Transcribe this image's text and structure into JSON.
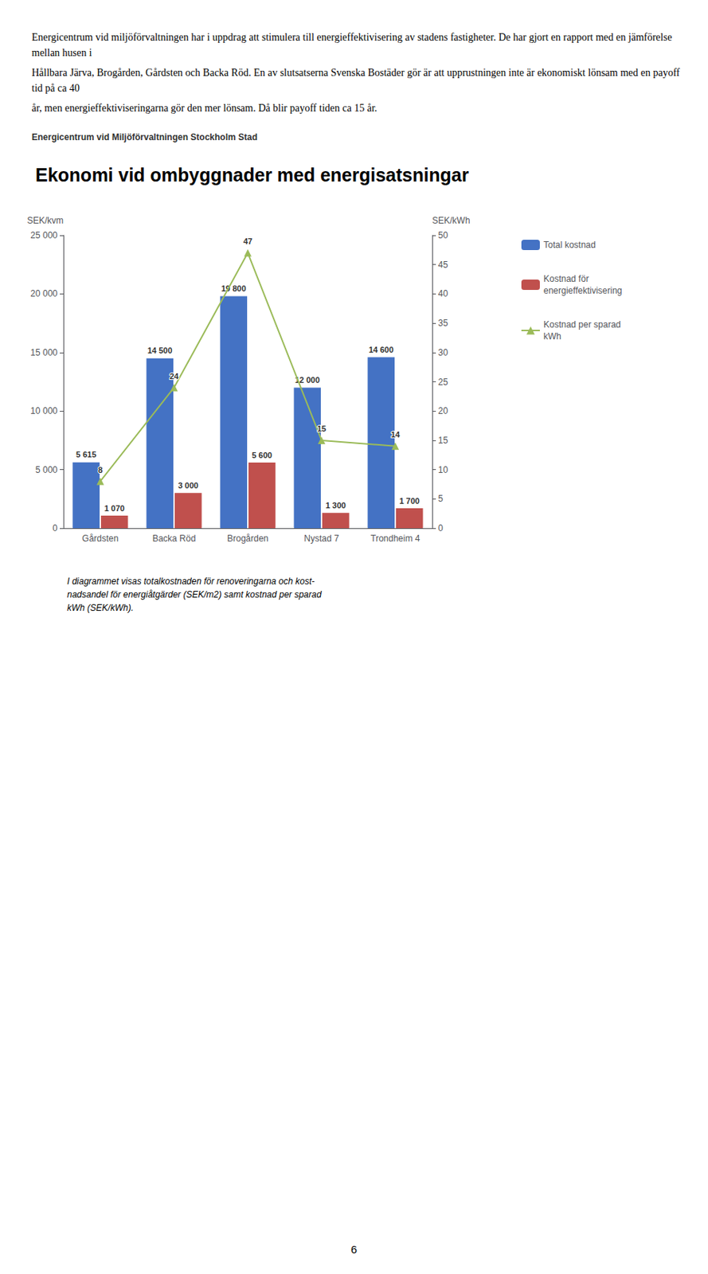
{
  "text_above": [
    "Energicentrum vid miljöförvaltningen har i uppdrag att stimulera till energieffektivisering av stadens fastigheter. De har gjort en rapport med en jämförelse mellan husen i",
    "Hållbara Järva, Brogården, Gårdsten och Backa Röd. En av slutsatserna Svenska Bostäder gör är att upprustningen inte är ekonomiskt lönsam med en payoff tid på ca 40",
    "år, men energieffektiviseringarna gör den mer lönsam. Då blir payoff tiden ca 15 år."
  ],
  "source": "Energicentrum vid Miljöförvaltningen Stockholm Stad",
  "caption": [
    "I diagrammet visas totalkostnaden för renoveringarna och kost-",
    "nadsandel för energiåtgärder (SEK/m2) samt kostnad per sparad",
    "kWh (SEK/kWh)."
  ],
  "page_number": "6",
  "chart_data": {
    "type": "bar",
    "title": "Ekonomi vid ombyggnader med energisatsningar",
    "categories": [
      "Gårdsten",
      "Backa Röd",
      "Brogården",
      "Nystad 7",
      "Trondheim 4"
    ],
    "ylabel": "SEK/kvm",
    "y2label": "SEK/kWh",
    "ylim": [
      0,
      25000
    ],
    "yticks": [
      0,
      {
        "value": 5000,
        "label": "5 000"
      },
      {
        "value": 10000,
        "label": "10 000"
      },
      {
        "value": 15000,
        "label": "15 000"
      },
      {
        "value": 20000,
        "label": "20 000"
      },
      {
        "value": 25000,
        "label": "25 000"
      }
    ],
    "y2lim": [
      0,
      50
    ],
    "y2ticks": [
      0,
      5,
      10,
      15,
      20,
      25,
      30,
      35,
      40,
      45,
      50
    ],
    "grid": false,
    "legend": "right",
    "data_labels": true,
    "series": [
      {
        "name": "Total kostnad",
        "type": "bar",
        "color": "#4472C4",
        "values": [
          5615,
          14500,
          19800,
          12000,
          14600
        ],
        "value_labels": [
          "5 615",
          "14 500",
          "19 800",
          "12 000",
          "14 600"
        ]
      },
      {
        "name": "Kostnad för\nenergieffektivisering",
        "type": "bar",
        "color": "#C0504D",
        "values": [
          1070,
          3000,
          5600,
          1300,
          1700
        ],
        "value_labels": [
          "1 070",
          "3 000",
          "5 600",
          "1 300",
          "1 700"
        ]
      },
      {
        "name": "Kostnad per sparad\nkWh",
        "type": "line",
        "axis": "y2",
        "marker": "triangle",
        "color": "#9BBB59",
        "values": [
          8,
          24,
          47,
          15,
          14
        ]
      }
    ]
  }
}
